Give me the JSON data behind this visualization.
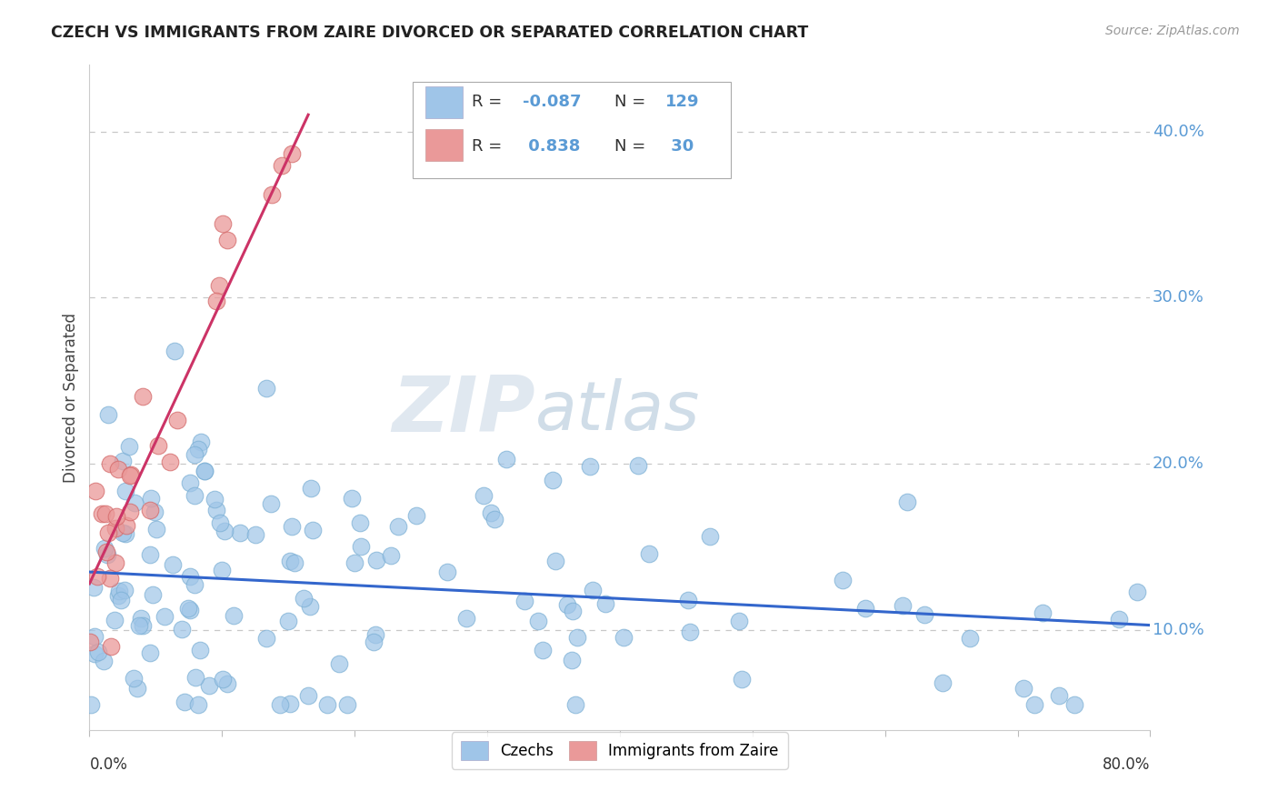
{
  "title": "CZECH VS IMMIGRANTS FROM ZAIRE DIVORCED OR SEPARATED CORRELATION CHART",
  "source": "Source: ZipAtlas.com",
  "ylabel": "Divorced or Separated",
  "ytick_values": [
    0.1,
    0.2,
    0.3,
    0.4
  ],
  "ytick_labels": [
    "10.0%",
    "20.0%",
    "30.0%",
    "40.0%"
  ],
  "xmin": 0.0,
  "xmax": 0.8,
  "ymin": 0.04,
  "ymax": 0.44,
  "blue_color": "#9FC5E8",
  "pink_color": "#EA9999",
  "blue_line_color": "#3366CC",
  "pink_line_color": "#CC3366",
  "tick_color": "#5B9BD5",
  "watermark_zip": "ZIP",
  "watermark_atlas": "atlas",
  "czechs_label": "Czechs",
  "zaire_label": "Immigrants from Zaire",
  "blue_trend_x0": 0.0,
  "blue_trend_y0": 0.135,
  "blue_trend_x1": 0.8,
  "blue_trend_y1": 0.103,
  "pink_trend_x0": 0.0,
  "pink_trend_y0": 0.128,
  "pink_trend_x1": 0.165,
  "pink_trend_y1": 0.41,
  "legend_r1": "-0.087",
  "legend_n1": "129",
  "legend_r2": "0.838",
  "legend_n2": "30"
}
